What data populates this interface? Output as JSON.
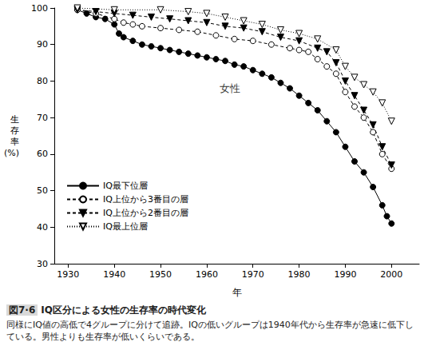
{
  "chart_data": {
    "type": "line",
    "x_label": "年",
    "y_label": "生存率(%)",
    "annotations": [
      {
        "text": "女性",
        "x": 1965,
        "y": 78
      }
    ],
    "xlim": [
      1927,
      2006
    ],
    "xticks": [
      1930,
      1940,
      1950,
      1960,
      1970,
      1980,
      1990,
      2000
    ],
    "ylim": [
      30,
      100
    ],
    "yticks": [
      30,
      40,
      50,
      60,
      70,
      80,
      90,
      100
    ],
    "grid": false,
    "legend": "lower left",
    "series": [
      {
        "name": "IQ最下位層",
        "color": "#000000",
        "marker": "circle",
        "line_style": "solid",
        "x": [
          1932,
          1934,
          1936,
          1938,
          1940,
          1941,
          1942,
          1944,
          1946,
          1948,
          1950,
          1952,
          1954,
          1956,
          1958,
          1960,
          1962,
          1964,
          1966,
          1968,
          1970,
          1972,
          1974,
          1976,
          1978,
          1980,
          1982,
          1984,
          1986,
          1988,
          1990,
          1992,
          1994,
          1996,
          1998,
          1999,
          2000
        ],
        "values": [
          99.5,
          98.5,
          97.5,
          97,
          95.5,
          93,
          92,
          91,
          90,
          89.5,
          89,
          88.5,
          88,
          87.5,
          87,
          86.5,
          86,
          85.5,
          84.5,
          84,
          83,
          82,
          81,
          79.5,
          78,
          76,
          74,
          72,
          69,
          66,
          62,
          58,
          55,
          51,
          46,
          43,
          41
        ]
      },
      {
        "name": "IQ上位から3番目の層",
        "color": "#000000",
        "marker": "circle_open",
        "line_style": "dashed",
        "x": [
          1932,
          1936,
          1940,
          1942,
          1944,
          1946,
          1950,
          1954,
          1958,
          1962,
          1966,
          1970,
          1974,
          1978,
          1980,
          1982,
          1984,
          1986,
          1988,
          1990,
          1992,
          1994,
          1996,
          1998,
          2000
        ],
        "values": [
          99.5,
          98.5,
          97,
          96,
          95.5,
          95,
          94.5,
          94,
          93.5,
          92.5,
          91.5,
          91,
          90,
          89,
          88.5,
          88,
          86,
          84,
          82,
          77,
          73,
          70,
          66,
          60,
          56
        ]
      },
      {
        "name": "IQ上位から2番目の層",
        "color": "#000000",
        "marker": "triangle_down",
        "line_style": "dashed",
        "x": [
          1932,
          1936,
          1940,
          1944,
          1948,
          1952,
          1956,
          1960,
          1964,
          1968,
          1972,
          1976,
          1980,
          1984,
          1986,
          1988,
          1990,
          1992,
          1994,
          1996,
          1998,
          2000
        ],
        "values": [
          99.5,
          99,
          98.5,
          98,
          97.5,
          97,
          96.5,
          96,
          95,
          94.5,
          93.5,
          92,
          91,
          89,
          88,
          85,
          80,
          76,
          72,
          68,
          62,
          57
        ]
      },
      {
        "name": "IQ最上位層",
        "color": "#000000",
        "marker": "triangle_down_open",
        "line_style": "dotted",
        "x": [
          1932,
          1940,
          1950,
          1956,
          1960,
          1964,
          1968,
          1972,
          1976,
          1980,
          1984,
          1988,
          1990,
          1992,
          1994,
          1996,
          1998,
          2000
        ],
        "values": [
          100,
          99.5,
          99.5,
          99,
          98.5,
          97.5,
          96.5,
          95.5,
          94,
          93,
          91.5,
          88.5,
          84,
          81,
          79,
          77,
          74,
          69
        ]
      }
    ]
  },
  "caption": {
    "label": "図7·6",
    "title": "IQ区分による女性の生存率の時代変化",
    "text": "同様にIQ値の高低で4グループに分けて追跡。IQの低いグループは1940年代から生存率が急速に低下している。男性よりも生存率が低いくらいである。"
  }
}
